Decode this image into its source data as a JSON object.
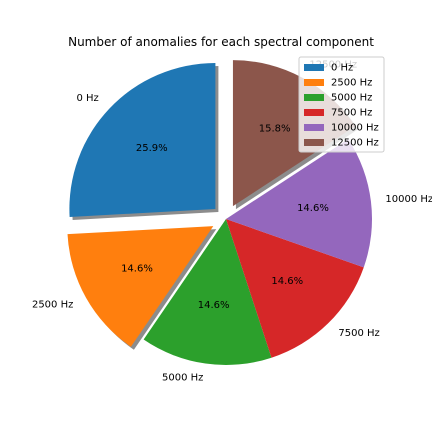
{
  "chart_data": {
    "type": "pie",
    "title": "Number of anomalies for each spectral component",
    "categories": [
      "0 Hz",
      "2500 Hz",
      "5000 Hz",
      "7500 Hz",
      "10000 Hz",
      "12500 Hz"
    ],
    "values": [
      25.9,
      14.6,
      14.6,
      14.6,
      14.6,
      15.8
    ],
    "pct_labels": [
      "25.9%",
      "14.6%",
      "14.6%",
      "14.6%",
      "14.6%",
      "15.8%"
    ],
    "colors": [
      "#1f77b4",
      "#ff7f0e",
      "#2ca02c",
      "#d62728",
      "#9467bd",
      "#8c564b"
    ],
    "exploded": [
      true,
      true,
      false,
      false,
      false,
      true
    ],
    "shadow": true,
    "start_angle": 90,
    "legend_position": "top-right"
  }
}
